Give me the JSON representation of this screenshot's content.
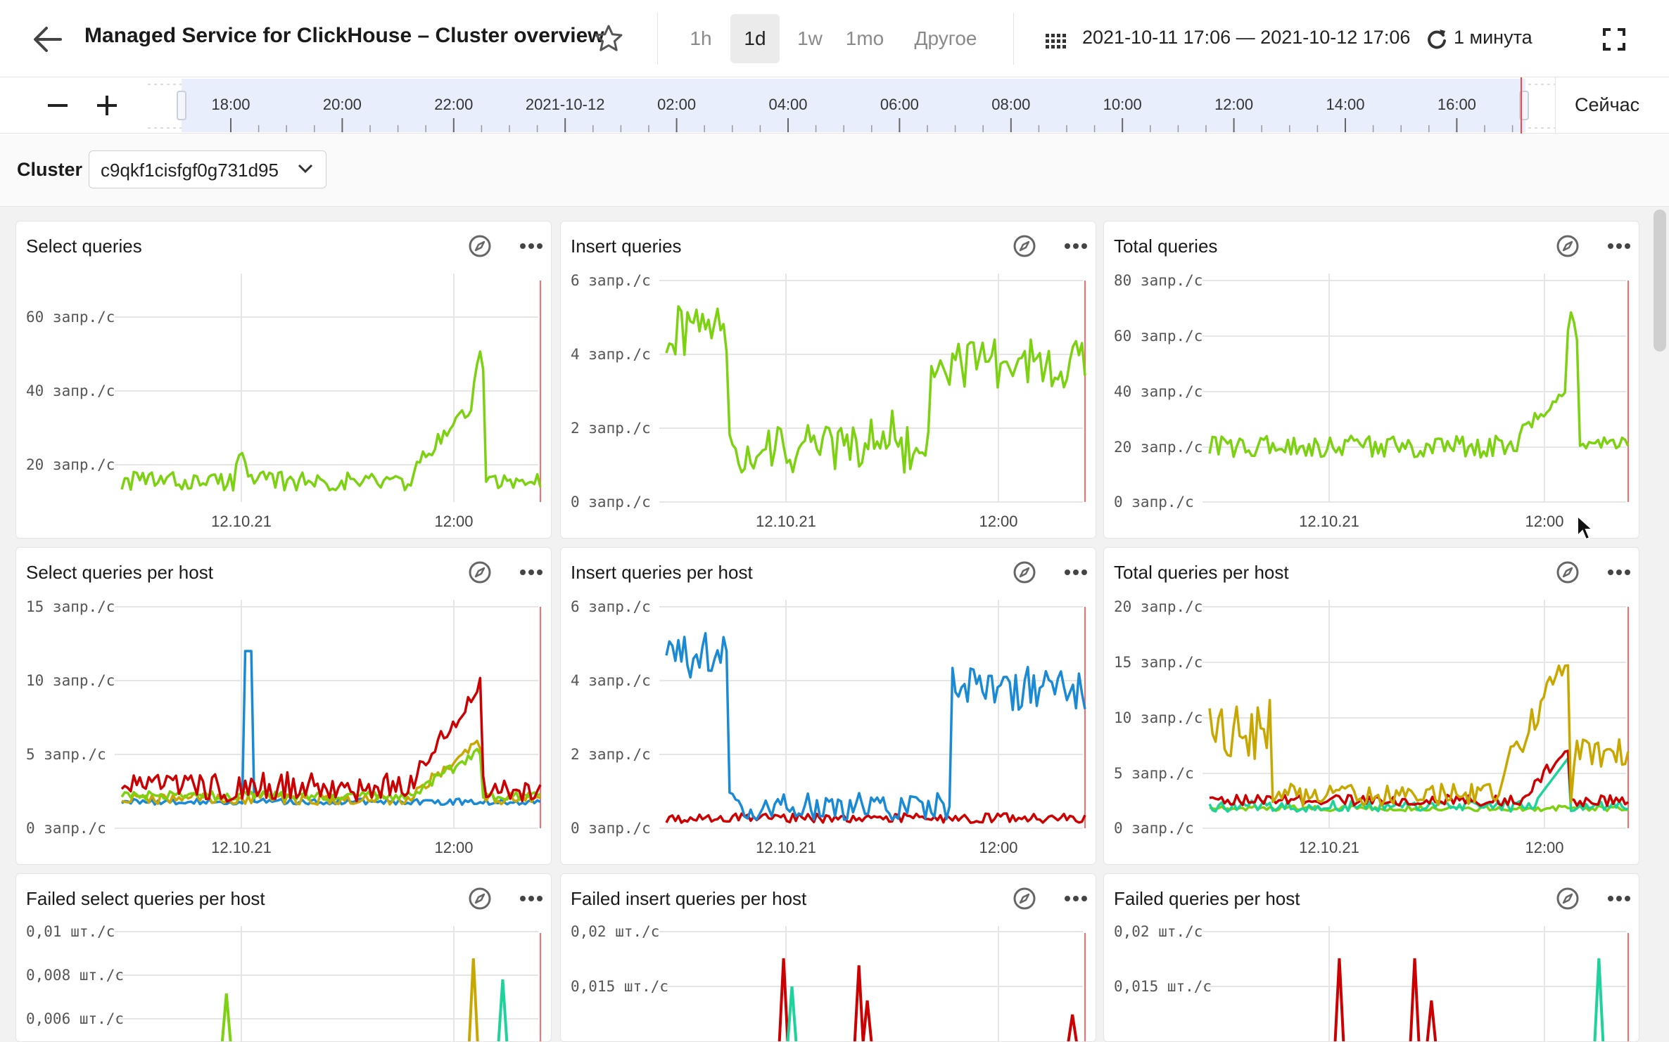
{
  "header": {
    "title": "Managed Service for ClickHouse – Cluster overview",
    "ranges": [
      "1h",
      "1d",
      "1w",
      "1mo",
      "Другое"
    ],
    "active_range": "1d",
    "date_range": "2021-10-11 17:06 — 2021-10-12 17:06",
    "refresh": "1 минута"
  },
  "timeline": {
    "ticks": [
      "18:00",
      "20:00",
      "22:00",
      "2021-10-12",
      "02:00",
      "04:00",
      "06:00",
      "08:00",
      "10:00",
      "12:00",
      "14:00",
      "16:00"
    ],
    "now_label": "Сейчас"
  },
  "filter": {
    "label": "Cluster",
    "cluster_value": "c9qkf1cisfgf0g731d95"
  },
  "x_ticks": [
    "12.10.21",
    "12:00"
  ],
  "colors": {
    "green": "#7cd111",
    "blue": "#1a8ad4",
    "red": "#cc0000",
    "yellow": "#c8a800",
    "teal": "#1ed39b"
  },
  "panels": [
    {
      "title": "Select queries",
      "y_ticks": [
        "60 запр./с",
        "40 запр./с",
        "20 запр./с"
      ]
    },
    {
      "title": "Insert queries",
      "y_ticks": [
        "6 запр./с",
        "4 запр./с",
        "2 запр./с",
        "0 запр./с"
      ]
    },
    {
      "title": "Total queries",
      "y_ticks": [
        "80 запр./с",
        "60 запр./с",
        "40 запр./с",
        "20 запр./с",
        "0 запр./с"
      ]
    },
    {
      "title": "Select queries per host",
      "y_ticks": [
        "15 запр./с",
        "10 запр./с",
        "5 запр./с",
        "0 запр./с"
      ]
    },
    {
      "title": "Insert queries per host",
      "y_ticks": [
        "6 запр./с",
        "4 запр./с",
        "2 запр./с",
        "0 запр./с"
      ]
    },
    {
      "title": "Total queries per host",
      "y_ticks": [
        "20 запр./с",
        "15 запр./с",
        "10 запр./с",
        "5 запр./с",
        "0 запр./с"
      ]
    },
    {
      "title": "Failed select queries per host",
      "y_ticks": [
        "0,01 шт./с",
        "0,008 шт./с",
        "0,006 шт./с"
      ]
    },
    {
      "title": "Failed insert queries per host",
      "y_ticks": [
        "0,02 шт./с",
        "0,015 шт./с"
      ]
    },
    {
      "title": "Failed queries per host",
      "y_ticks": [
        "0,02 шт./с",
        "0,015 шт./с"
      ]
    }
  ]
}
